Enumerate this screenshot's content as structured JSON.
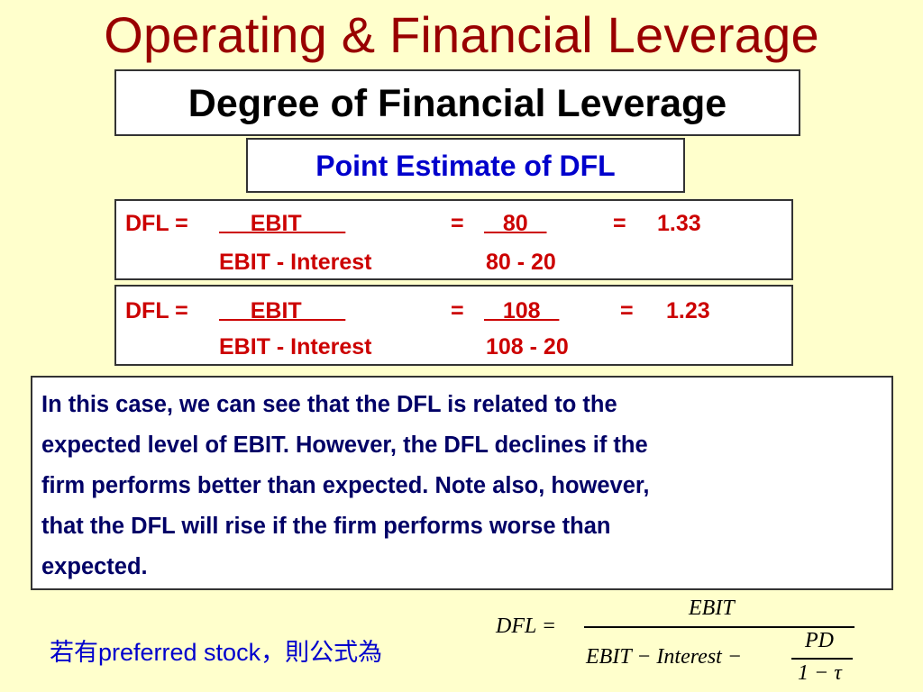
{
  "title": "Operating & Financial Leverage",
  "subtitle": "Degree of Financial Leverage",
  "point_estimate": "Point Estimate of DFL",
  "dfl_calcs": [
    {
      "lhs": "DFL =",
      "numerator_label": "EBIT",
      "eq1": "=",
      "numerator_value": "80",
      "eq2": "=",
      "result": "1.33",
      "denominator_label": "EBIT - Interest",
      "denominator_value": "80 - 20"
    },
    {
      "lhs": "DFL =",
      "numerator_label": "EBIT",
      "eq1": "=",
      "numerator_value": "108",
      "eq2": "=",
      "result": "1.23",
      "denominator_label": "EBIT - Interest",
      "denominator_value": "108 - 20"
    }
  ],
  "note_lines": [
    "In this case, we can see that the DFL is related to the",
    "expected level of EBIT.  However, the DFL declines if the",
    "firm performs better than expected.  Note also, however,",
    "that the DFL will rise if the firm performs worse than",
    "expected."
  ],
  "bottom_text": "若有preferred stock，則公式為",
  "formula": {
    "lhs": "DFL =",
    "numerator": "EBIT",
    "denominator_left": "EBIT − Interest −",
    "pd": "PD",
    "one_minus_tau": "1 − τ"
  },
  "colors": {
    "background": "#FFFFCC",
    "title": "#990000",
    "point_estimate": "#0000CC",
    "dfl_text": "#CC0000",
    "note_text": "#000066",
    "bottom_text": "#0000CC"
  }
}
